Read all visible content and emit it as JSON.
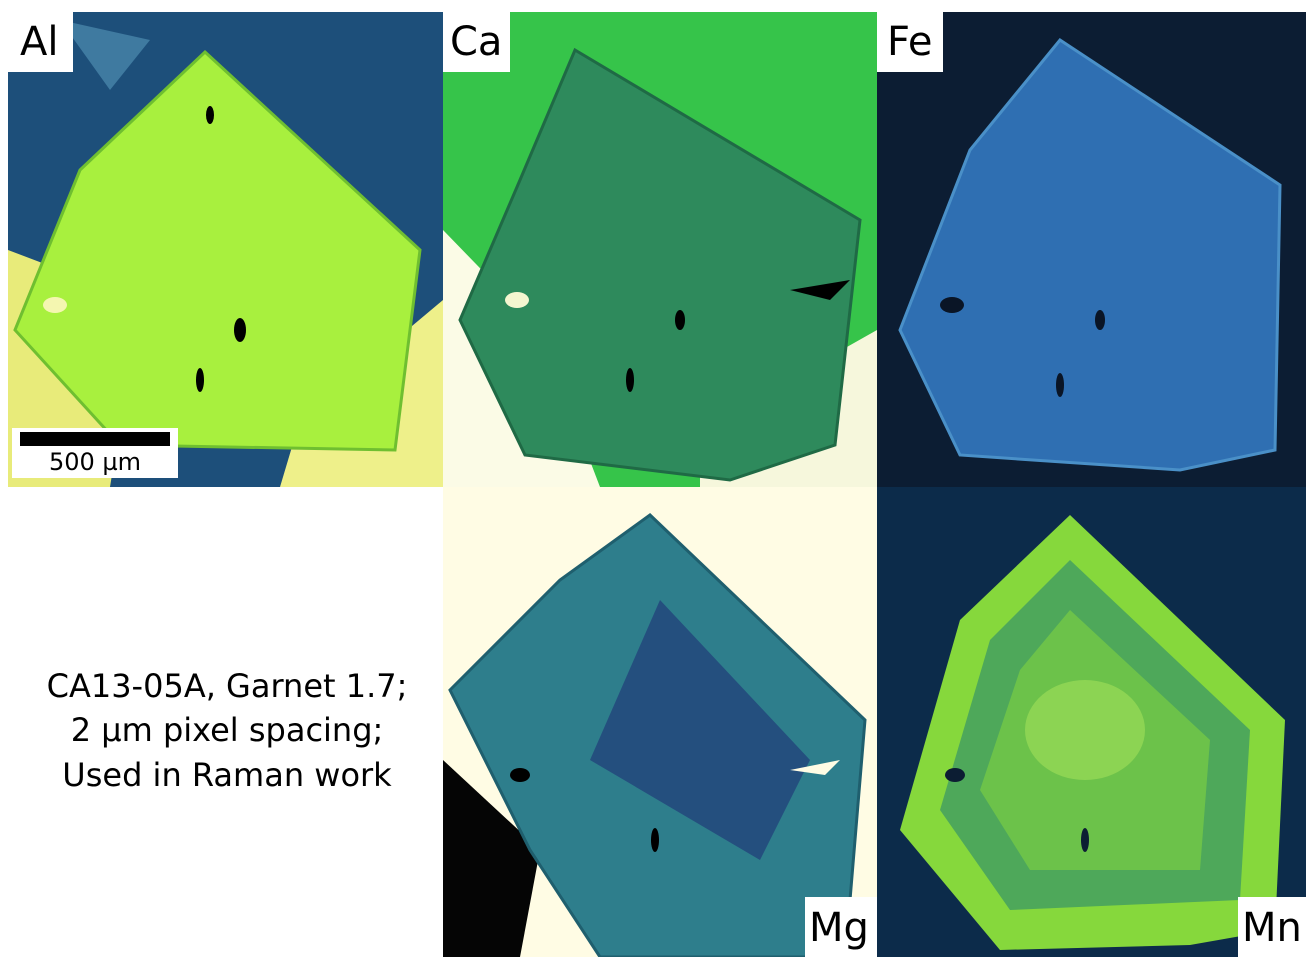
{
  "panels": [
    {
      "label": "Al"
    },
    {
      "label": "Ca"
    },
    {
      "label": "Fe"
    },
    {
      "label": "Mg"
    },
    {
      "label": "Mn"
    }
  ],
  "scale_bar": {
    "label": "500 µm"
  },
  "caption": {
    "lines": [
      "CA13-05A,  Garnet 1.7;",
      "2 µm pixel spacing;",
      "Used in Raman work"
    ]
  }
}
